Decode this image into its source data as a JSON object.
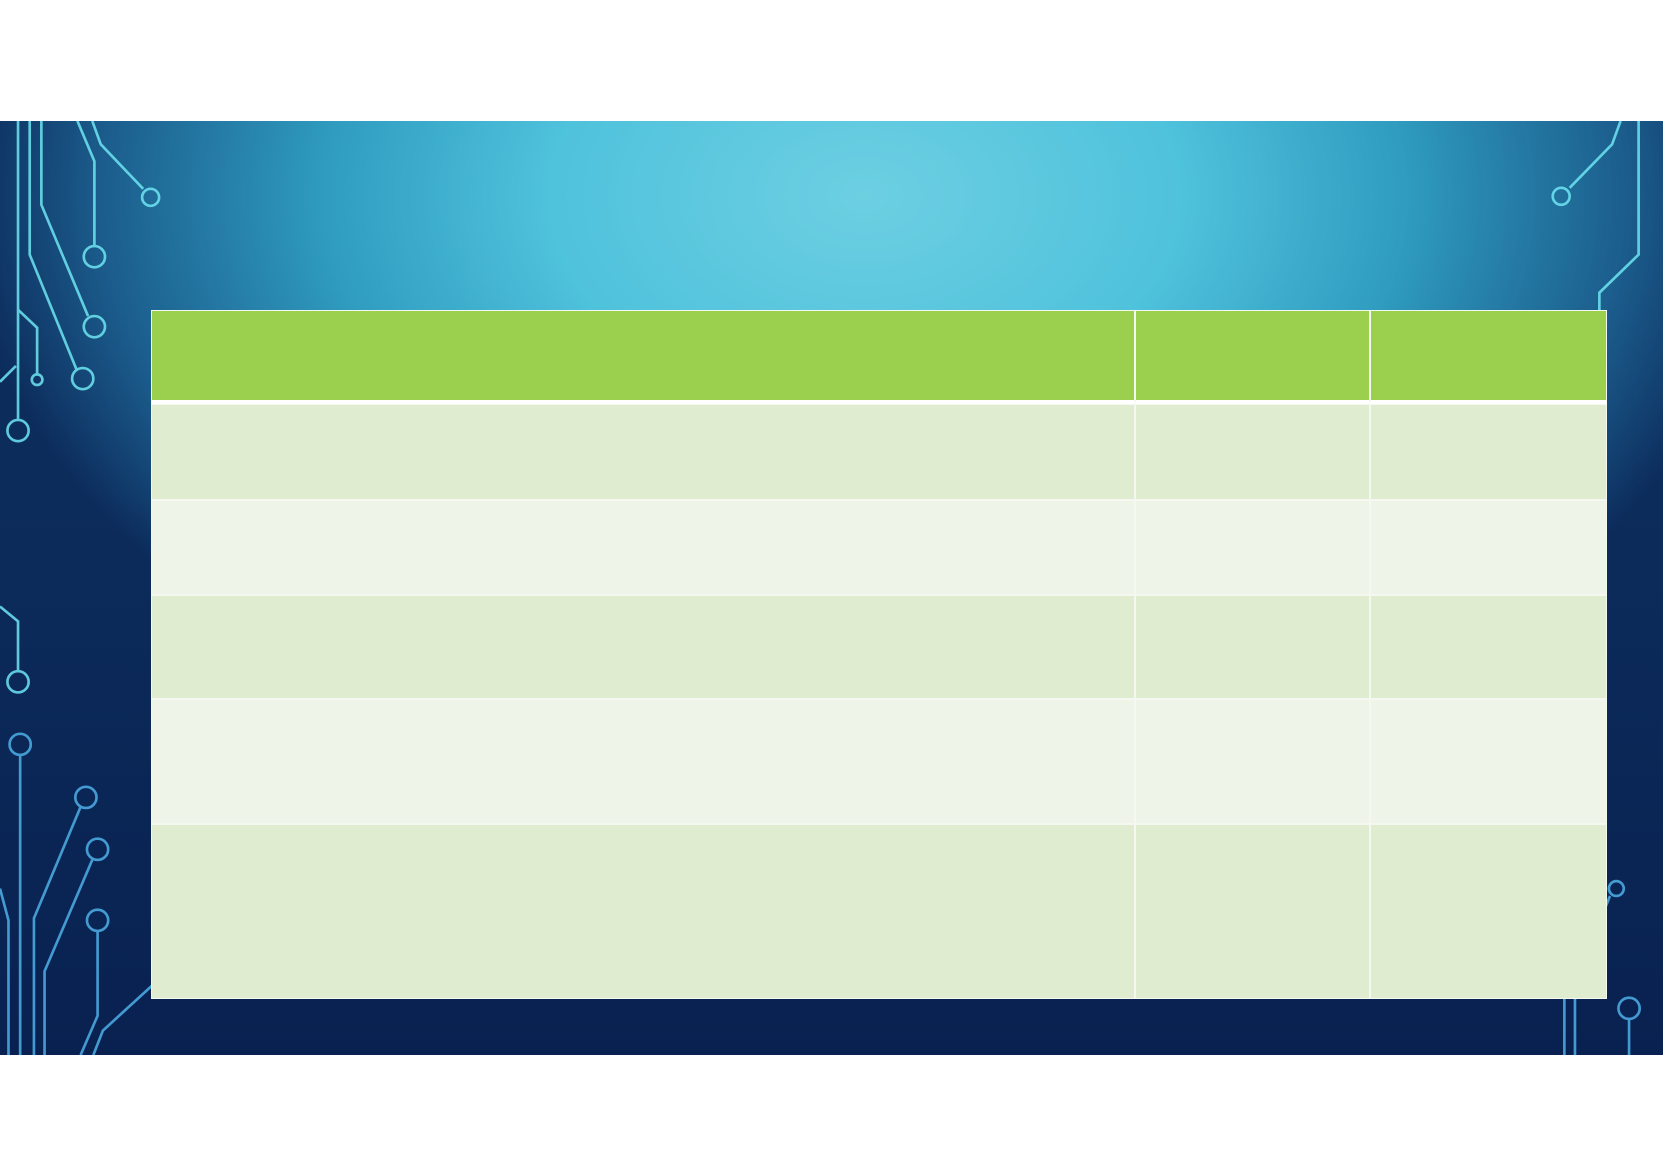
{
  "slide": {
    "colors": {
      "header": "#9bcf4e",
      "row_dark": "#dfecd0",
      "row_light": "#eef4e8",
      "circuit": "#6ee6f2"
    }
  },
  "table": {
    "columns": 3,
    "header": [
      "",
      "",
      ""
    ],
    "rows": [
      [
        "",
        "",
        ""
      ],
      [
        "",
        "",
        ""
      ],
      [
        "",
        "",
        ""
      ],
      [
        "",
        "",
        ""
      ],
      [
        "",
        "",
        ""
      ]
    ]
  }
}
